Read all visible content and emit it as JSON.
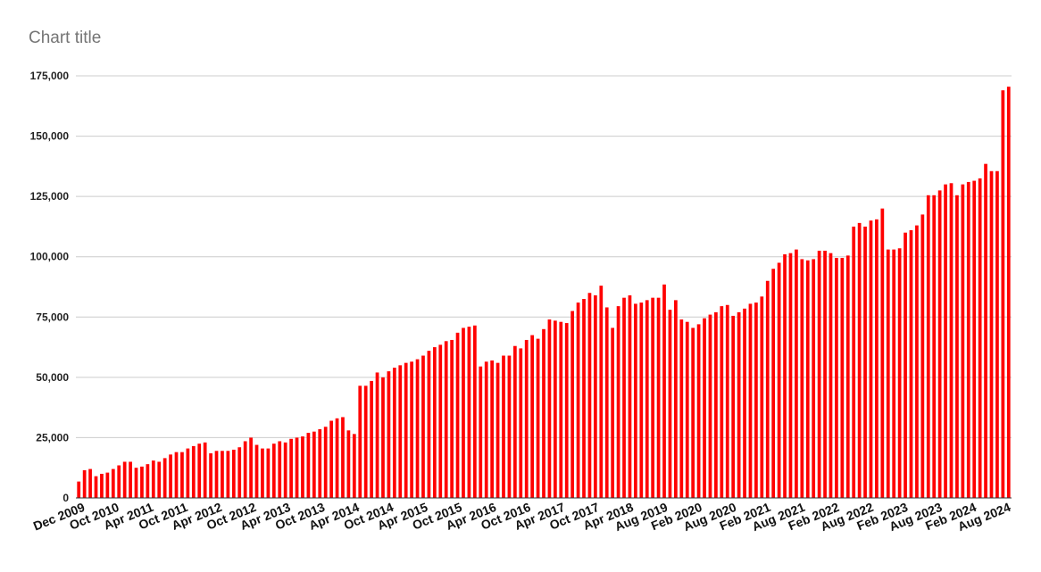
{
  "chart_data": {
    "type": "bar",
    "title": "Chart title",
    "xlabel": "",
    "ylabel": "",
    "ylim": [
      0,
      175000
    ],
    "grid": true,
    "legend": "none",
    "bar_color": "#ff0000",
    "gridline_color": "#cccccc",
    "y_ticks": [
      "0",
      "25,000",
      "50,000",
      "75,000",
      "100,000",
      "125,000",
      "150,000",
      "175,000"
    ],
    "y_tick_values": [
      0,
      25000,
      50000,
      75000,
      100000,
      125000,
      150000,
      175000
    ],
    "x_tick_labels": [
      "Dec 2009",
      "Oct 2010",
      "Apr 2011",
      "Oct 2011",
      "Apr 2012",
      "Oct 2012",
      "Apr 2013",
      "Oct 2013",
      "Apr 2014",
      "Oct 2014",
      "Apr 2015",
      "Oct 2015",
      "Apr 2016",
      "Oct 2016",
      "Apr 2017",
      "Oct 2017",
      "Apr 2018",
      "Aug 2019",
      "Feb 2020",
      "Aug 2020",
      "Feb 2021",
      "Aug 2021",
      "Feb 2022",
      "Aug 2022",
      "Feb 2023",
      "Aug 2023",
      "Feb 2024",
      "Aug 2024"
    ],
    "values": [
      6800,
      11500,
      12000,
      9000,
      10000,
      10500,
      12000,
      13500,
      15000,
      15000,
      12500,
      13000,
      14000,
      15500,
      15000,
      16500,
      18000,
      19000,
      19000,
      20500,
      21500,
      22500,
      23000,
      18500,
      19500,
      19500,
      19500,
      20000,
      21000,
      23500,
      25000,
      22000,
      20500,
      20500,
      22500,
      23500,
      23000,
      24500,
      25000,
      25500,
      27000,
      27500,
      28500,
      29500,
      32000,
      33000,
      33500,
      28000,
      26500,
      46500,
      46500,
      48500,
      52000,
      50000,
      52500,
      54000,
      55000,
      56000,
      56500,
      57500,
      59000,
      61000,
      62500,
      63500,
      65000,
      65500,
      68500,
      70500,
      71000,
      71500,
      54500,
      56500,
      57000,
      56000,
      59000,
      59000,
      63000,
      62000,
      65500,
      67500,
      66000,
      70000,
      74000,
      73500,
      73000,
      72500,
      77500,
      81000,
      82500,
      85000,
      84000,
      88000,
      79000,
      70500,
      79500,
      83000,
      84000,
      80500,
      81000,
      82000,
      83000,
      83000,
      88500,
      78000,
      82000,
      74000,
      73000,
      70500,
      72000,
      74500,
      76000,
      77000,
      79500,
      80000,
      75500,
      77000,
      78500,
      80500,
      81000,
      83500,
      90000,
      95000,
      97500,
      101000,
      101500,
      103000,
      99000,
      98500,
      99000,
      102500,
      102500,
      101500,
      99500,
      99500,
      100500,
      112500,
      114000,
      112500,
      115000,
      115500,
      120000,
      103000,
      103000,
      103500,
      110000,
      111000,
      113000,
      117500,
      125500,
      125500,
      127500,
      130000,
      130500,
      125500,
      130000,
      131000,
      131500,
      132500,
      138500,
      135500,
      135500,
      169000,
      170500
    ]
  }
}
